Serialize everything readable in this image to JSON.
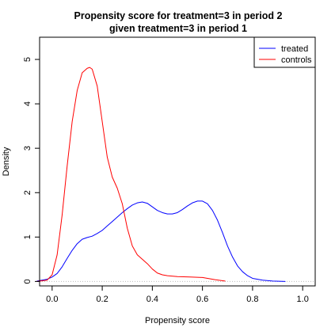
{
  "chart_data": {
    "type": "line",
    "title": "Propensity score for treatment=3 in period 2",
    "subtitle": "given treatment=3 in period 1",
    "xlabel": "Propensity score",
    "ylabel": "Density",
    "xlim": [
      -0.05,
      1.05
    ],
    "ylim": [
      -0.1,
      5.5
    ],
    "xticks": [
      0.0,
      0.2,
      0.4,
      0.6,
      0.8,
      1.0
    ],
    "xtick_labels": [
      "0.0",
      "0.2",
      "0.4",
      "0.6",
      "0.8",
      "1.0"
    ],
    "yticks": [
      0,
      1,
      2,
      3,
      4,
      5
    ],
    "ytick_labels": [
      "0",
      "1",
      "2",
      "3",
      "4",
      "5"
    ],
    "grid": false,
    "baseline": 0,
    "legend_position": "top-right",
    "series": [
      {
        "name": "treated",
        "color": "#0000ff",
        "x": [
          -0.06,
          -0.02,
          0.0,
          0.02,
          0.04,
          0.06,
          0.08,
          0.1,
          0.12,
          0.14,
          0.16,
          0.18,
          0.2,
          0.22,
          0.24,
          0.26,
          0.28,
          0.3,
          0.32,
          0.34,
          0.36,
          0.38,
          0.4,
          0.42,
          0.44,
          0.46,
          0.48,
          0.5,
          0.52,
          0.54,
          0.56,
          0.58,
          0.6,
          0.62,
          0.64,
          0.66,
          0.68,
          0.7,
          0.72,
          0.74,
          0.76,
          0.78,
          0.8,
          0.84,
          0.88,
          0.93
        ],
        "y": [
          0.01,
          0.05,
          0.1,
          0.18,
          0.33,
          0.52,
          0.7,
          0.85,
          0.95,
          0.99,
          1.02,
          1.08,
          1.15,
          1.25,
          1.35,
          1.45,
          1.55,
          1.64,
          1.72,
          1.77,
          1.79,
          1.76,
          1.68,
          1.6,
          1.55,
          1.52,
          1.52,
          1.55,
          1.62,
          1.7,
          1.77,
          1.81,
          1.81,
          1.75,
          1.6,
          1.38,
          1.1,
          0.8,
          0.55,
          0.35,
          0.22,
          0.13,
          0.07,
          0.03,
          0.01,
          0.0
        ]
      },
      {
        "name": "controls",
        "color": "#ff0000",
        "x": [
          -0.06,
          -0.02,
          0.0,
          0.02,
          0.04,
          0.06,
          0.08,
          0.1,
          0.12,
          0.14,
          0.15,
          0.16,
          0.18,
          0.2,
          0.22,
          0.24,
          0.26,
          0.28,
          0.3,
          0.32,
          0.34,
          0.36,
          0.38,
          0.4,
          0.42,
          0.44,
          0.46,
          0.5,
          0.55,
          0.6,
          0.65,
          0.69
        ],
        "y": [
          0.0,
          0.03,
          0.15,
          0.6,
          1.5,
          2.6,
          3.6,
          4.3,
          4.7,
          4.8,
          4.82,
          4.78,
          4.4,
          3.6,
          2.8,
          2.35,
          2.1,
          1.75,
          1.2,
          0.8,
          0.6,
          0.5,
          0.4,
          0.28,
          0.19,
          0.15,
          0.13,
          0.11,
          0.1,
          0.09,
          0.04,
          0.01
        ]
      }
    ]
  }
}
